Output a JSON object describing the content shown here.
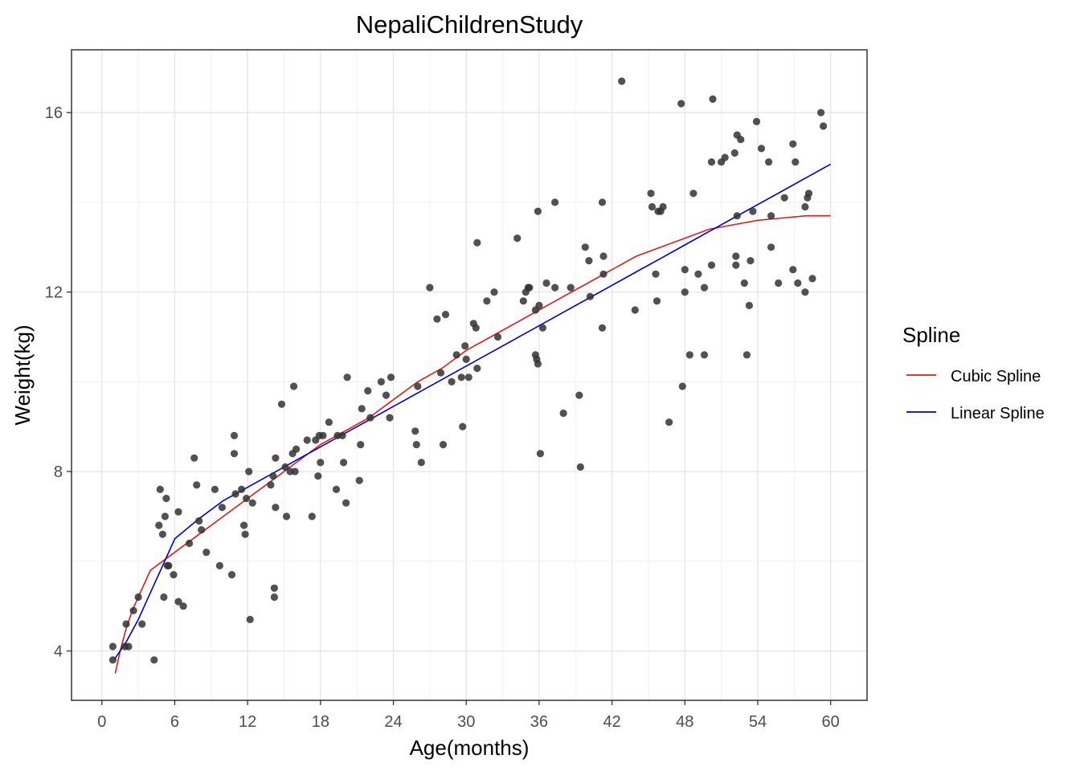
{
  "chart_data": {
    "type": "scatter",
    "title": "NepaliChildrenStudy",
    "xlabel": "Age(months)",
    "ylabel": "Weight(kg)",
    "xlim": [
      -2.5,
      63.0
    ],
    "ylim": [
      2.9,
      17.4
    ],
    "x_ticks": [
      0,
      6,
      12,
      18,
      24,
      30,
      36,
      42,
      48,
      54,
      60
    ],
    "y_ticks": [
      4,
      8,
      12,
      16
    ],
    "grid": true,
    "point_color": "#333333",
    "legend": {
      "title": "Spline",
      "position": "right",
      "entries": [
        {
          "label": "Cubic Spline",
          "color": "#e31a1c"
        },
        {
          "label": "Linear Spline",
          "color": "#0000cc"
        }
      ]
    },
    "points": [
      [
        0.9,
        4.1
      ],
      [
        0.9,
        3.8
      ],
      [
        1.9,
        4.1
      ],
      [
        2.0,
        4.6
      ],
      [
        2.2,
        4.1
      ],
      [
        2.6,
        4.9
      ],
      [
        3.0,
        5.2
      ],
      [
        3.3,
        4.6
      ],
      [
        4.3,
        3.8
      ],
      [
        4.7,
        6.8
      ],
      [
        4.8,
        7.6
      ],
      [
        5.0,
        6.6
      ],
      [
        5.1,
        5.2
      ],
      [
        5.2,
        7.0
      ],
      [
        5.3,
        7.4
      ],
      [
        5.4,
        5.9
      ],
      [
        5.5,
        5.9
      ],
      [
        5.9,
        5.7
      ],
      [
        6.3,
        7.1
      ],
      [
        6.3,
        5.1
      ],
      [
        6.7,
        5.0
      ],
      [
        7.2,
        6.4
      ],
      [
        7.6,
        8.3
      ],
      [
        7.8,
        7.7
      ],
      [
        8.0,
        6.9
      ],
      [
        8.2,
        6.7
      ],
      [
        8.6,
        6.2
      ],
      [
        9.3,
        7.6
      ],
      [
        9.7,
        5.9
      ],
      [
        9.9,
        7.2
      ],
      [
        10.7,
        5.7
      ],
      [
        10.9,
        8.8
      ],
      [
        10.9,
        8.4
      ],
      [
        11.0,
        7.5
      ],
      [
        11.5,
        7.6
      ],
      [
        11.7,
        6.8
      ],
      [
        11.8,
        6.6
      ],
      [
        11.9,
        7.4
      ],
      [
        12.1,
        8.0
      ],
      [
        12.2,
        4.7
      ],
      [
        12.4,
        7.3
      ],
      [
        13.9,
        7.7
      ],
      [
        14.1,
        7.9
      ],
      [
        14.2,
        5.4
      ],
      [
        14.2,
        5.2
      ],
      [
        14.3,
        7.2
      ],
      [
        14.3,
        8.3
      ],
      [
        14.8,
        9.5
      ],
      [
        15.1,
        8.1
      ],
      [
        15.2,
        7.0
      ],
      [
        15.5,
        8.0
      ],
      [
        15.7,
        8.4
      ],
      [
        15.8,
        9.9
      ],
      [
        15.9,
        8.0
      ],
      [
        16.0,
        8.5
      ],
      [
        16.9,
        8.7
      ],
      [
        17.3,
        7.0
      ],
      [
        17.6,
        8.7
      ],
      [
        17.8,
        7.9
      ],
      [
        17.9,
        8.8
      ],
      [
        18.0,
        8.2
      ],
      [
        18.2,
        8.8
      ],
      [
        18.7,
        9.1
      ],
      [
        19.3,
        7.6
      ],
      [
        19.4,
        8.8
      ],
      [
        19.8,
        8.8
      ],
      [
        19.9,
        8.2
      ],
      [
        20.1,
        7.3
      ],
      [
        20.2,
        10.1
      ],
      [
        21.2,
        7.8
      ],
      [
        21.3,
        8.6
      ],
      [
        21.4,
        9.4
      ],
      [
        21.9,
        9.8
      ],
      [
        22.1,
        9.2
      ],
      [
        23.0,
        10.0
      ],
      [
        23.4,
        9.7
      ],
      [
        23.7,
        9.2
      ],
      [
        23.8,
        10.1
      ],
      [
        25.8,
        8.9
      ],
      [
        25.9,
        8.6
      ],
      [
        26.0,
        9.9
      ],
      [
        26.3,
        8.2
      ],
      [
        27.0,
        12.1
      ],
      [
        27.6,
        11.4
      ],
      [
        27.9,
        10.2
      ],
      [
        28.1,
        8.6
      ],
      [
        28.3,
        11.5
      ],
      [
        28.8,
        10.0
      ],
      [
        29.2,
        10.6
      ],
      [
        29.6,
        10.1
      ],
      [
        29.7,
        9.0
      ],
      [
        29.9,
        10.8
      ],
      [
        30.0,
        10.5
      ],
      [
        30.2,
        10.1
      ],
      [
        30.6,
        11.3
      ],
      [
        30.8,
        11.2
      ],
      [
        30.9,
        10.3
      ],
      [
        30.9,
        13.1
      ],
      [
        31.7,
        11.8
      ],
      [
        32.3,
        12.0
      ],
      [
        32.6,
        11.0
      ],
      [
        34.2,
        13.2
      ],
      [
        34.7,
        11.8
      ],
      [
        34.9,
        12.0
      ],
      [
        35.1,
        12.1
      ],
      [
        35.2,
        12.1
      ],
      [
        35.7,
        11.6
      ],
      [
        35.7,
        10.6
      ],
      [
        35.8,
        10.5
      ],
      [
        35.9,
        13.8
      ],
      [
        35.9,
        10.4
      ],
      [
        36.0,
        11.7
      ],
      [
        36.1,
        8.4
      ],
      [
        36.3,
        11.2
      ],
      [
        36.6,
        12.2
      ],
      [
        37.3,
        12.1
      ],
      [
        37.3,
        14.0
      ],
      [
        38.0,
        9.3
      ],
      [
        38.6,
        12.1
      ],
      [
        39.3,
        9.7
      ],
      [
        39.4,
        8.1
      ],
      [
        39.8,
        13.0
      ],
      [
        40.1,
        12.7
      ],
      [
        40.2,
        11.9
      ],
      [
        41.2,
        14.0
      ],
      [
        41.2,
        11.2
      ],
      [
        41.3,
        12.8
      ],
      [
        41.3,
        12.4
      ],
      [
        42.8,
        16.7
      ],
      [
        43.9,
        11.6
      ],
      [
        45.2,
        14.2
      ],
      [
        45.3,
        13.9
      ],
      [
        45.6,
        12.4
      ],
      [
        45.7,
        11.8
      ],
      [
        45.8,
        13.8
      ],
      [
        46.0,
        13.8
      ],
      [
        46.2,
        13.9
      ],
      [
        46.7,
        9.1
      ],
      [
        47.7,
        16.2
      ],
      [
        47.8,
        9.9
      ],
      [
        48.0,
        12.5
      ],
      [
        48.0,
        12.0
      ],
      [
        48.4,
        10.6
      ],
      [
        48.7,
        14.2
      ],
      [
        49.1,
        12.4
      ],
      [
        49.6,
        10.6
      ],
      [
        49.6,
        12.1
      ],
      [
        50.2,
        12.6
      ],
      [
        50.2,
        14.9
      ],
      [
        50.3,
        16.3
      ],
      [
        51.0,
        14.9
      ],
      [
        51.3,
        15.0
      ],
      [
        52.1,
        15.1
      ],
      [
        52.2,
        12.8
      ],
      [
        52.2,
        12.6
      ],
      [
        52.3,
        13.7
      ],
      [
        52.3,
        15.5
      ],
      [
        52.6,
        15.4
      ],
      [
        52.9,
        12.2
      ],
      [
        53.1,
        10.6
      ],
      [
        53.3,
        11.7
      ],
      [
        53.4,
        12.7
      ],
      [
        53.6,
        13.8
      ],
      [
        53.9,
        15.8
      ],
      [
        54.3,
        15.2
      ],
      [
        54.9,
        14.9
      ],
      [
        55.1,
        13.7
      ],
      [
        55.1,
        13.0
      ],
      [
        55.7,
        12.2
      ],
      [
        56.2,
        14.1
      ],
      [
        56.9,
        12.5
      ],
      [
        56.9,
        15.3
      ],
      [
        57.1,
        14.9
      ],
      [
        57.3,
        12.2
      ],
      [
        57.9,
        12.0
      ],
      [
        57.9,
        13.9
      ],
      [
        58.1,
        14.1
      ],
      [
        58.2,
        14.2
      ],
      [
        58.5,
        12.3
      ],
      [
        59.2,
        16.0
      ],
      [
        59.4,
        15.7
      ]
    ],
    "series": [
      {
        "name": "Cubic Spline",
        "color": "#e31a1c",
        "x": [
          1.1,
          1.5,
          2.0,
          2.5,
          3.0,
          4.0,
          5.0,
          6.0,
          8.0,
          10.0,
          12.0,
          14.0,
          16.0,
          18.0,
          20.0,
          22.0,
          24.0,
          26.0,
          28.0,
          30.0,
          32.0,
          34.0,
          36.0,
          38.0,
          40.0,
          42.0,
          44.0,
          46.0,
          48.0,
          50.0,
          52.0,
          54.0,
          56.0,
          58.0,
          59.0,
          60.0
        ],
        "y": [
          3.5,
          4.0,
          4.5,
          4.9,
          5.2,
          5.8,
          6.0,
          6.2,
          6.6,
          7.0,
          7.4,
          7.8,
          8.2,
          8.6,
          8.9,
          9.2,
          9.6,
          10.0,
          10.3,
          10.7,
          11.0,
          11.3,
          11.6,
          11.9,
          12.2,
          12.5,
          12.8,
          13.0,
          13.2,
          13.4,
          13.5,
          13.6,
          13.65,
          13.7,
          13.7,
          13.7
        ]
      },
      {
        "name": "Linear Spline",
        "color": "#0000cc",
        "x": [
          1.0,
          2.0,
          3.0,
          4.0,
          5.0,
          6.0,
          8.0,
          10.0,
          12.0,
          14.0,
          16.0,
          18.0,
          20.0,
          22.0,
          24.0,
          26.0,
          28.0,
          30.0,
          32.0,
          34.0,
          36.0,
          38.0,
          40.0,
          42.0,
          44.0,
          46.0,
          48.0,
          50.0,
          52.0,
          54.0,
          56.0,
          58.0,
          60.0
        ],
        "y": [
          3.8,
          4.2,
          4.7,
          5.3,
          5.9,
          6.5,
          6.95,
          7.35,
          7.65,
          7.95,
          8.25,
          8.55,
          8.85,
          9.15,
          9.45,
          9.75,
          10.05,
          10.35,
          10.65,
          10.95,
          11.25,
          11.55,
          11.85,
          12.15,
          12.45,
          12.75,
          13.05,
          13.35,
          13.65,
          13.95,
          14.25,
          14.55,
          14.85
        ]
      }
    ]
  }
}
